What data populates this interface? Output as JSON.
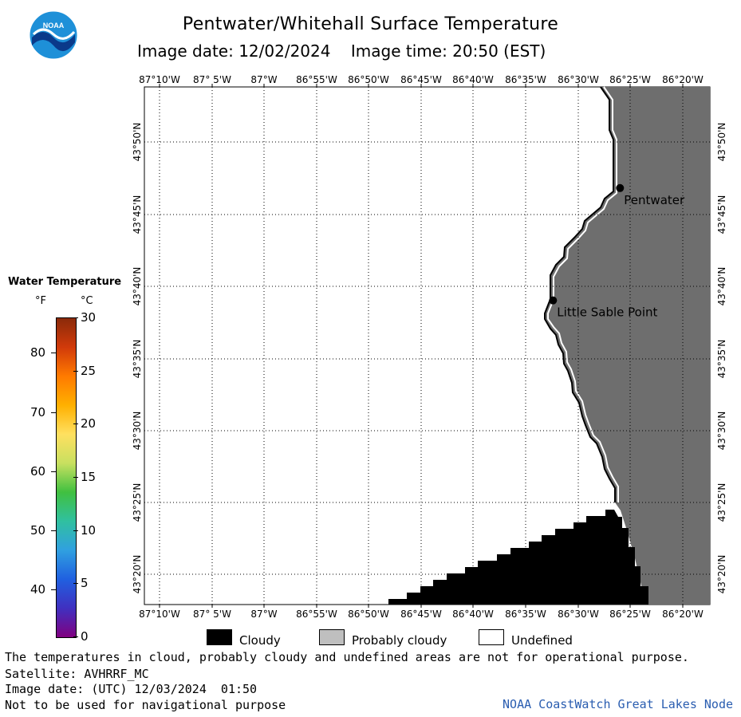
{
  "header": {
    "title": "Pentwater/Whitehall Surface Temperature",
    "image_date_label": "Image date: 12/02/2024",
    "image_time_label": "Image time: 20:50 (EST)"
  },
  "logo": {
    "text": "NOAA",
    "colors": {
      "outer": "#1e90d8",
      "inner": "#0a3a8a",
      "wave": "#ffffff"
    }
  },
  "map": {
    "colors": {
      "land": "#6e6e6e",
      "water": "#ffffff",
      "cloud": "#000000",
      "grid": "#000000",
      "coast": "#000000"
    },
    "lon_labels": [
      "87°10'W",
      "87° 5'W",
      "87°W",
      "86°55'W",
      "86°50'W",
      "86°45'W",
      "86°40'W",
      "86°35'W",
      "86°30'W",
      "86°25'W",
      "86°20'W"
    ],
    "lat_labels": [
      "43°50'N",
      "43°45'N",
      "43°40'N",
      "43°35'N",
      "43°30'N",
      "43°25'N",
      "43°20'N"
    ],
    "places": [
      {
        "name": "Pentwater",
        "lon": -86.4333,
        "lat": 43.78
      },
      {
        "name": "Little Sable Point",
        "lon": -86.54,
        "lat": 43.65
      }
    ]
  },
  "colorbar": {
    "title": "Water Temperature",
    "unit_f": "°F",
    "unit_c": "°C",
    "f_ticks": [
      "80",
      "70",
      "60",
      "50",
      "40"
    ],
    "c_ticks": [
      "30",
      "25",
      "20",
      "15",
      "10",
      "5",
      "0"
    ],
    "gradient": [
      "#8a2a0a",
      "#d13a0a",
      "#ff7a00",
      "#ffb000",
      "#ffe060",
      "#c8e060",
      "#40c040",
      "#30c0a0",
      "#30a0e0",
      "#2060e0",
      "#4030c0",
      "#800080"
    ]
  },
  "legend": {
    "items": [
      {
        "label": "Cloudy",
        "color": "#000000"
      },
      {
        "label": "Probably cloudy",
        "color": "#bfbfbf"
      },
      {
        "label": "Undefined",
        "color": "#ffffff"
      }
    ]
  },
  "footer": {
    "line1": "The temperatures in cloud, probably cloudy and undefined areas are not for operational purpose.",
    "line2": "Satellite: AVHRRF_MC",
    "line3": "Image date: (UTC) 12/03/2024  01:50",
    "line4": "Not to be used for navigational purpose",
    "credit": "NOAA CoastWatch Great Lakes Node"
  }
}
